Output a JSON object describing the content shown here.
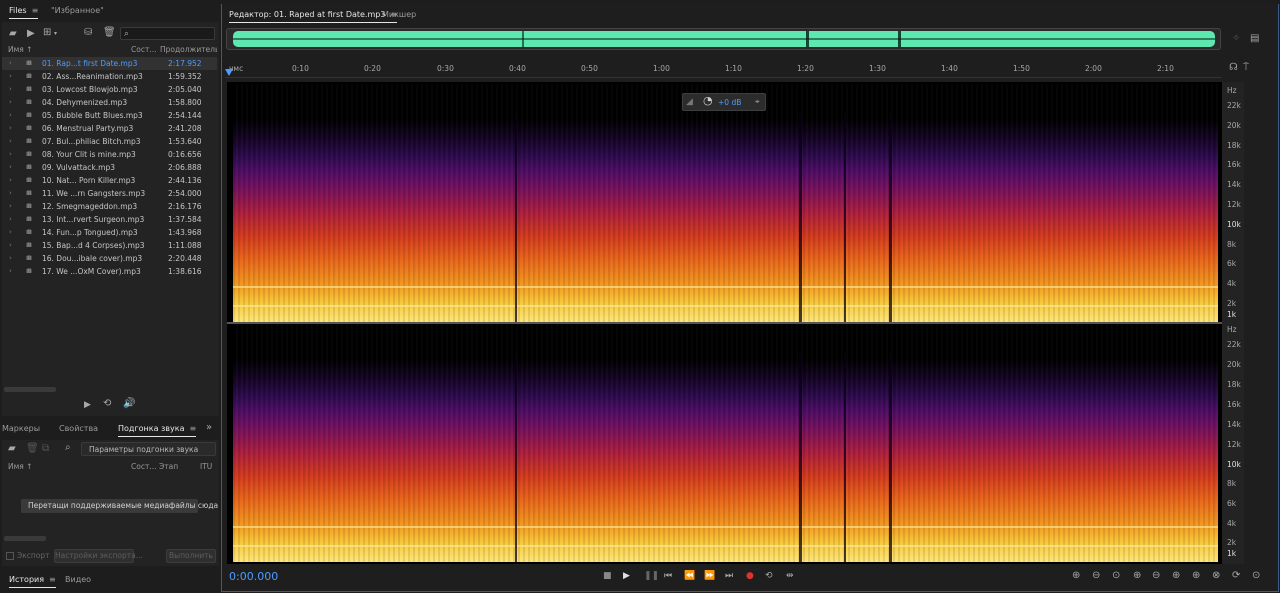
{
  "files_panel": {
    "tabs": [
      {
        "label": "Files"
      },
      {
        "label": "\"Избранное\""
      }
    ],
    "columns": {
      "name": "Имя",
      "status": "Сост...",
      "duration": "Продолжительн..."
    },
    "items": [
      {
        "name": "01. Rap...t first Date.mp3",
        "duration": "2:17.952",
        "selected": true
      },
      {
        "name": "02. Ass...Reanimation.mp3",
        "duration": "1:59.352"
      },
      {
        "name": "03. Lowcost Blowjob.mp3",
        "duration": "2:05.040"
      },
      {
        "name": "04. Dehymenized.mp3",
        "duration": "1:58.800"
      },
      {
        "name": "05. Bubble Butt Blues.mp3",
        "duration": "2:54.144"
      },
      {
        "name": "06. Menstrual Party.mp3",
        "duration": "2:41.208"
      },
      {
        "name": "07. Bul...philiac Bitch.mp3",
        "duration": "1:53.640"
      },
      {
        "name": "08. Your Clit is mine.mp3",
        "duration": "0:16.656"
      },
      {
        "name": "09. Vulvattack.mp3",
        "duration": "2:06.888"
      },
      {
        "name": "10. Nat... Porn Killer.mp3",
        "duration": "2:44.136"
      },
      {
        "name": "11. We ...rn Gangsters.mp3",
        "duration": "2:54.000"
      },
      {
        "name": "12. Smegmageddon.mp3",
        "duration": "2:16.176"
      },
      {
        "name": "13. Int...rvert Surgeon.mp3",
        "duration": "1:37.584"
      },
      {
        "name": "14. Fun...p Tongued).mp3",
        "duration": "1:43.968"
      },
      {
        "name": "15. Bap...d 4 Corpses).mp3",
        "duration": "1:11.088"
      },
      {
        "name": "16. Dou...ibale cover).mp3",
        "duration": "2:20.448"
      },
      {
        "name": "17. We ...OxM Cover).mp3",
        "duration": "1:38.616"
      }
    ]
  },
  "match_panel": {
    "tabs": [
      {
        "label": "Маркеры"
      },
      {
        "label": "Свойства"
      },
      {
        "label": "Подгонка звука"
      }
    ],
    "settings_button": "Параметры подгонки звука",
    "columns": {
      "name": "Имя",
      "status": "Сост...",
      "stage": "Этап",
      "itu": "ITU"
    },
    "drop_hint": "Перетащи поддерживаемые медиафайлы сюда",
    "export_label": "Экспорт",
    "export_settings": "Настройки экспорта...",
    "run_button": "Выполнить"
  },
  "bottom_tabs": [
    {
      "label": "История"
    },
    {
      "label": "Видео"
    }
  ],
  "editor": {
    "tabs": [
      {
        "label": "Редактор: 01. Raped at first Date.mp3"
      },
      {
        "label": "Микшер"
      }
    ],
    "ruler_unit": "чмс",
    "ruler_ticks": [
      "0:10",
      "0:20",
      "0:30",
      "0:40",
      "0:50",
      "1:00",
      "1:10",
      "1:20",
      "1:30",
      "1:40",
      "1:50",
      "2:00",
      "2:10"
    ],
    "gain_value": "+0 dB",
    "hz_unit": "Hz",
    "hz_ticks": [
      "22k",
      "20k",
      "18k",
      "16k",
      "14k",
      "12k",
      "10k",
      "8k",
      "6k",
      "4k",
      "2k",
      "1k"
    ],
    "current_time": "0:00.000",
    "accent_color": "#4d9cff",
    "overview_color": "#5ee8b0"
  }
}
